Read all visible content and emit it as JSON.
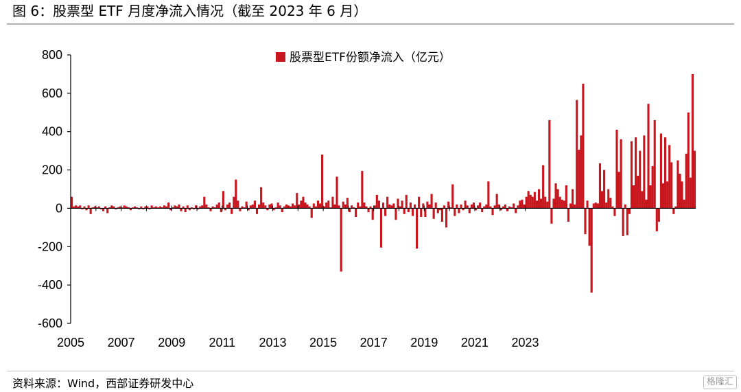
{
  "header": {
    "title": "图 6：股票型 ETF 月度净流入情况（截至 2023 年 6 月）"
  },
  "footer": {
    "source": "资料来源：Wind，西部证券研发中心",
    "watermark": "格隆汇"
  },
  "colors": {
    "bar": "#c8161e",
    "axis": "#000000"
  },
  "chart_data": {
    "type": "bar",
    "title": "",
    "xlabel": "",
    "ylabel": "",
    "ylim": [
      -600,
      800
    ],
    "yticks": [
      800,
      600,
      400,
      200,
      0,
      -200,
      -400,
      -600
    ],
    "xticks": [
      "2005",
      "2007",
      "2009",
      "2011",
      "2013",
      "2015",
      "2017",
      "2019",
      "2021",
      "2023"
    ],
    "legend": {
      "position": "top-center",
      "label": "股票型ETF份额净流入（亿元）"
    },
    "grid": false,
    "start": "2005-01",
    "end": "2023-06",
    "series": [
      {
        "name": "股票型ETF份额净流入（亿元）",
        "values": [
          60,
          10,
          15,
          10,
          15,
          -5,
          10,
          -10,
          15,
          -30,
          5,
          10,
          5,
          10,
          -5,
          -15,
          10,
          -25,
          5,
          15,
          10,
          -5,
          5,
          10,
          5,
          15,
          10,
          5,
          -10,
          5,
          10,
          5,
          -5,
          10,
          -5,
          10,
          10,
          -5,
          15,
          5,
          10,
          5,
          10,
          5,
          15,
          10,
          30,
          -10,
          5,
          15,
          10,
          20,
          -15,
          10,
          -20,
          15,
          -10,
          5,
          -5,
          15,
          -5,
          10,
          15,
          60,
          20,
          5,
          -15,
          10,
          5,
          20,
          30,
          -20,
          90,
          -10,
          20,
          30,
          -30,
          60,
          150,
          40,
          -15,
          10,
          5,
          35,
          -10,
          15,
          20,
          40,
          -30,
          20,
          110,
          30,
          15,
          -10,
          20,
          25,
          -10,
          5,
          30,
          15,
          -20,
          10,
          20,
          15,
          10,
          25,
          15,
          80,
          20,
          40,
          60,
          30,
          20,
          10,
          -50,
          25,
          10,
          40,
          25,
          280,
          10,
          30,
          40,
          5,
          60,
          20,
          165,
          15,
          -330,
          35,
          20,
          55,
          -20,
          15,
          5,
          -45,
          30,
          10,
          195,
          30,
          10,
          -20,
          10,
          -60,
          15,
          70,
          40,
          -205,
          30,
          -40,
          60,
          20,
          15,
          25,
          -60,
          50,
          10,
          40,
          -30,
          70,
          -20,
          30,
          -40,
          20,
          -210,
          60,
          -45,
          25,
          -45,
          35,
          20,
          75,
          -55,
          30,
          -25,
          -10,
          -70,
          15,
          -100,
          35,
          5,
          125,
          -40,
          20,
          -25,
          20,
          -10,
          40,
          15,
          -25,
          20,
          30,
          -10,
          15,
          30,
          -20,
          10,
          20,
          140,
          10,
          -35,
          15,
          75,
          20,
          -10,
          10,
          20,
          -15,
          10,
          5,
          25,
          -25,
          15,
          40,
          45,
          20,
          60,
          90,
          70,
          60,
          85,
          40,
          100,
          50,
          225,
          60,
          35,
          460,
          -80,
          50,
          130,
          100,
          60,
          45,
          40,
          120,
          -70,
          25,
          100,
          20,
          565,
          305,
          380,
          650,
          -135,
          40,
          -195,
          -440,
          25,
          30,
          25,
          235,
          90,
          200,
          30,
          100,
          55,
          10,
          -40,
          410,
          190,
          360,
          -145,
          20,
          -140,
          -30,
          350,
          120,
          370,
          170,
          300,
          90,
          380,
          45,
          545,
          120,
          220,
          460,
          -120,
          -70,
          390,
          130,
          370,
          140,
          330,
          240,
          -30,
          10,
          250,
          180,
          140,
          45,
          285,
          500,
          160,
          700,
          300
        ]
      }
    ]
  }
}
